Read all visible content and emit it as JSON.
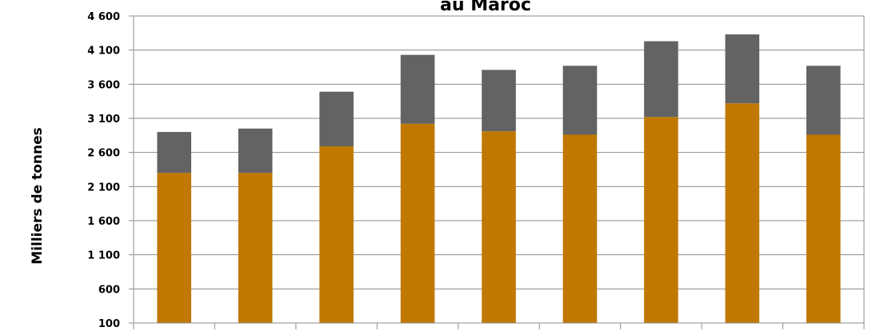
{
  "chart_data": {
    "type": "bar",
    "stacked": true,
    "title": "au Maroc",
    "xlabel": "",
    "ylabel": "Milliers de tonnes",
    "ylim": [
      100,
      4600
    ],
    "yticks": [
      100,
      600,
      1100,
      1600,
      2100,
      2600,
      3100,
      3600,
      4100,
      4600
    ],
    "ytick_labels": [
      "100",
      "600",
      "1 100",
      "1 600",
      "2 100",
      "2 600",
      "3 100",
      "3 600",
      "4 100",
      "4 600"
    ],
    "categories": [
      "",
      "",
      "",
      "",
      "",
      "",
      "",
      "",
      ""
    ],
    "grid": true,
    "legend": "none",
    "series": [
      {
        "color": "#c07800",
        "values": [
          2200,
          2200,
          2590,
          2920,
          2810,
          2760,
          3020,
          3220,
          2760
        ]
      },
      {
        "color": "#636363",
        "values": [
          600,
          650,
          800,
          1010,
          900,
          1010,
          1110,
          1010,
          1010
        ]
      }
    ]
  }
}
